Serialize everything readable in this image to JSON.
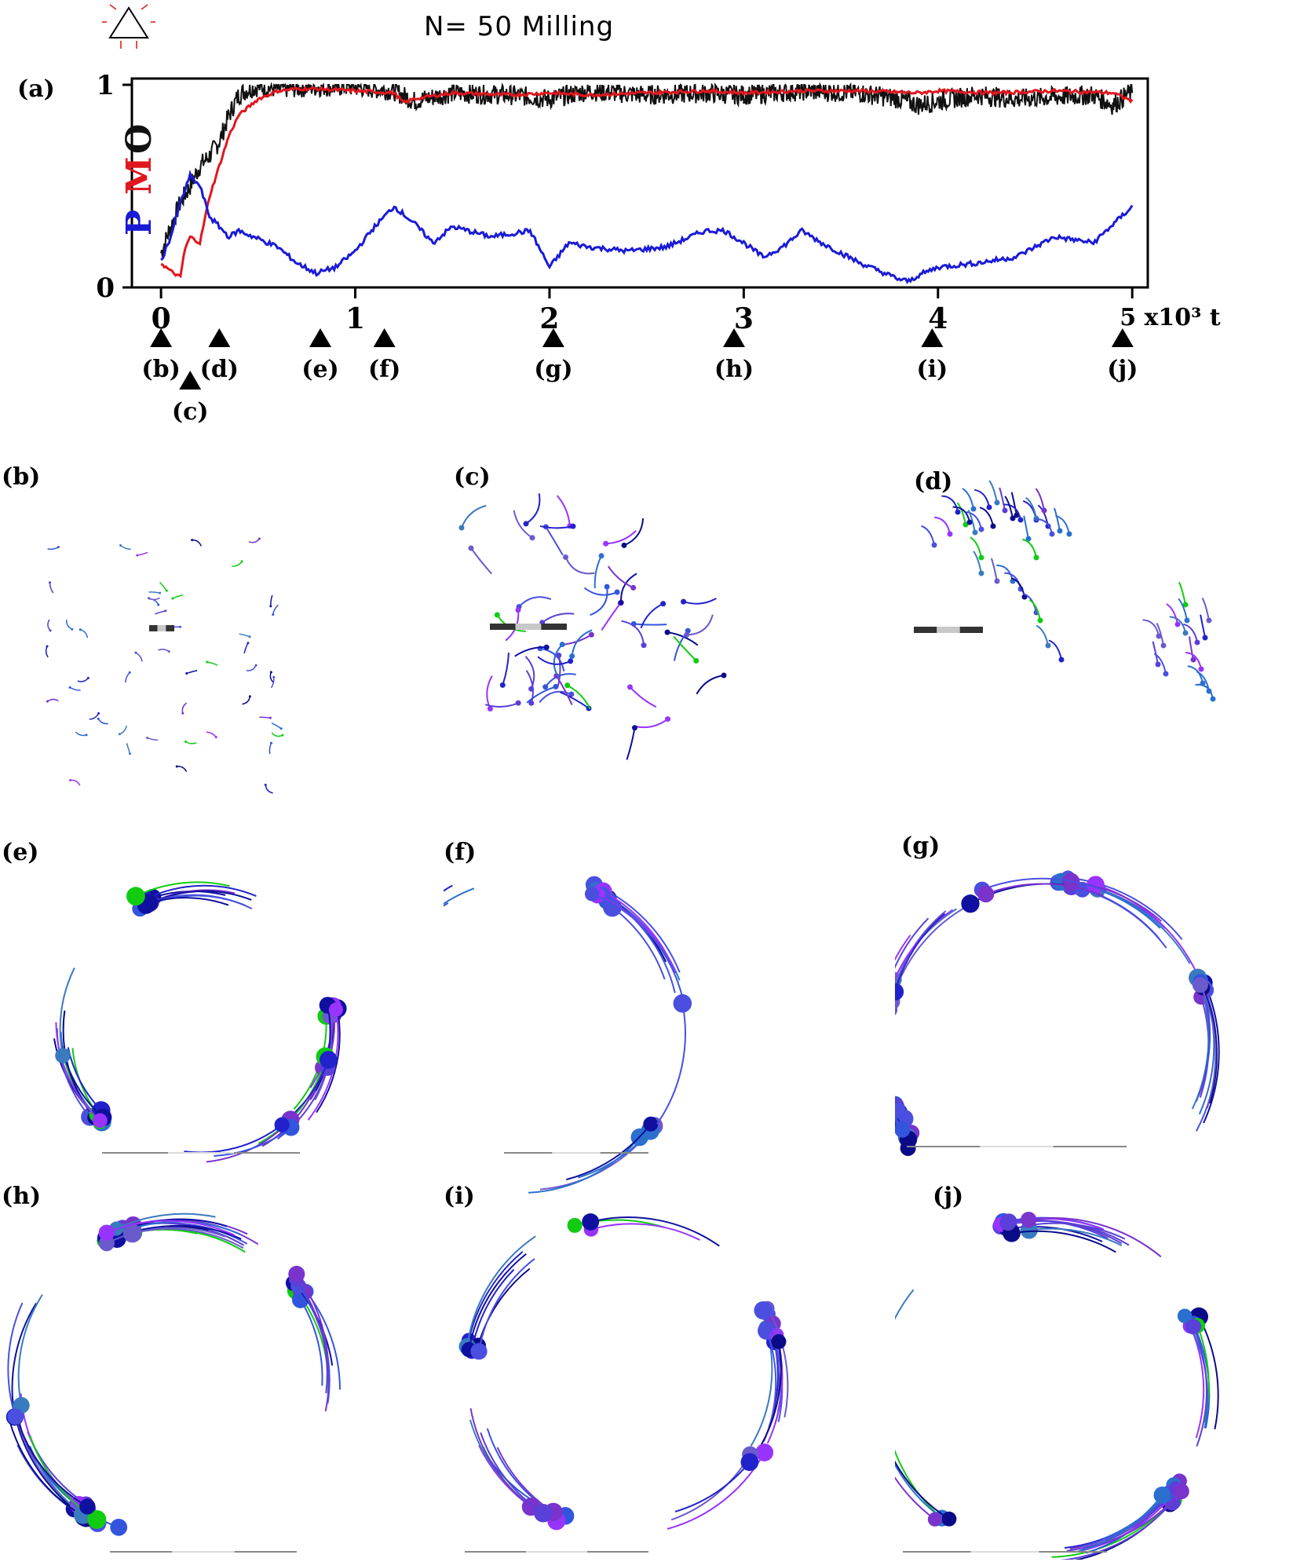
{
  "figure": {
    "title": "N= 50 Milling",
    "panel_labels": {
      "a": "(a)",
      "b": "(b)",
      "c": "(c)",
      "d": "(d)",
      "e": "(e)",
      "f": "(f)",
      "g": "(g)",
      "h": "(h)",
      "i": "(i)",
      "j": "(j)"
    },
    "ylabel_letters": [
      "P",
      "M",
      "O"
    ],
    "ylabel_colors": [
      "#1a1ad6",
      "#e0171f",
      "#111111"
    ],
    "xaxis_suffix": "5 x10³ t",
    "marker_labels": [
      "(b)",
      "(c)",
      "(d)",
      "(e)",
      "(f)",
      "(g)",
      "(h)",
      "(i)",
      "(j)"
    ]
  },
  "chart_data": {
    "type": "line",
    "title": "N= 50 Milling",
    "xlabel": "x10³ t",
    "ylabel": "P M O",
    "xlim": [
      -0.15,
      5.08
    ],
    "ylim": [
      0,
      1
    ],
    "x_ticks": [
      0,
      1,
      2,
      3,
      4,
      5
    ],
    "y_ticks": [
      0,
      1
    ],
    "markers": [
      {
        "label": "(b)",
        "t": 0.0
      },
      {
        "label": "(c)",
        "t": 0.15
      },
      {
        "label": "(d)",
        "t": 0.3
      },
      {
        "label": "(e)",
        "t": 0.82
      },
      {
        "label": "(f)",
        "t": 1.15
      },
      {
        "label": "(g)",
        "t": 2.02
      },
      {
        "label": "(h)",
        "t": 2.95
      },
      {
        "label": "(i)",
        "t": 3.97
      },
      {
        "label": "(j)",
        "t": 4.95
      }
    ],
    "series": [
      {
        "name": "O",
        "color": "#111111",
        "x": [
          0,
          0.05,
          0.1,
          0.15,
          0.2,
          0.25,
          0.3,
          0.35,
          0.4,
          0.45,
          0.5,
          0.6,
          0.8,
          1.0,
          1.2,
          1.3,
          1.5,
          1.8,
          2.0,
          2.2,
          2.5,
          2.8,
          3.0,
          3.3,
          3.6,
          3.8,
          3.9,
          4.0,
          4.2,
          4.4,
          4.6,
          4.8,
          4.9,
          5.0
        ],
        "y": [
          0.17,
          0.3,
          0.42,
          0.5,
          0.6,
          0.65,
          0.72,
          0.85,
          0.95,
          0.98,
          0.99,
          0.98,
          0.99,
          0.99,
          0.97,
          0.92,
          0.96,
          0.95,
          0.93,
          0.97,
          0.95,
          0.96,
          0.95,
          0.97,
          0.96,
          0.93,
          0.9,
          0.92,
          0.95,
          0.93,
          0.94,
          0.95,
          0.9,
          0.97
        ]
      },
      {
        "name": "M",
        "color": "#e0171f",
        "x": [
          0,
          0.05,
          0.1,
          0.12,
          0.15,
          0.2,
          0.25,
          0.3,
          0.35,
          0.4,
          0.5,
          0.6,
          0.7,
          0.8,
          1.0,
          1.2,
          1.25,
          1.3,
          1.5,
          1.8,
          2.0,
          2.2,
          2.5,
          2.8,
          3.0,
          3.3,
          3.6,
          3.9,
          4.0,
          4.3,
          4.6,
          4.9,
          5.0
        ],
        "y": [
          0.12,
          0.08,
          0.05,
          0.18,
          0.25,
          0.22,
          0.45,
          0.6,
          0.75,
          0.85,
          0.93,
          0.97,
          0.98,
          0.98,
          0.97,
          0.96,
          0.91,
          0.93,
          0.96,
          0.95,
          0.96,
          0.95,
          0.96,
          0.97,
          0.96,
          0.97,
          0.97,
          0.96,
          0.97,
          0.96,
          0.97,
          0.96,
          0.92
        ]
      },
      {
        "name": "P",
        "color": "#1a1ad6",
        "x": [
          0,
          0.05,
          0.1,
          0.15,
          0.2,
          0.25,
          0.3,
          0.35,
          0.4,
          0.5,
          0.6,
          0.7,
          0.8,
          0.9,
          1.0,
          1.1,
          1.2,
          1.3,
          1.4,
          1.5,
          1.7,
          1.9,
          2.0,
          2.1,
          2.2,
          2.4,
          2.6,
          2.8,
          2.9,
          3.0,
          3.1,
          3.2,
          3.3,
          3.4,
          3.6,
          3.8,
          3.85,
          3.9,
          4.0,
          4.2,
          4.4,
          4.5,
          4.6,
          4.8,
          5.0
        ],
        "y": [
          0.13,
          0.25,
          0.42,
          0.55,
          0.5,
          0.35,
          0.3,
          0.25,
          0.28,
          0.24,
          0.2,
          0.12,
          0.07,
          0.1,
          0.18,
          0.3,
          0.4,
          0.32,
          0.22,
          0.3,
          0.25,
          0.28,
          0.1,
          0.22,
          0.2,
          0.18,
          0.2,
          0.28,
          0.28,
          0.22,
          0.15,
          0.2,
          0.28,
          0.22,
          0.12,
          0.04,
          0.03,
          0.06,
          0.1,
          0.12,
          0.15,
          0.2,
          0.25,
          0.22,
          0.4
        ]
      }
    ]
  },
  "panels": [
    {
      "id": "b",
      "label": "(b)",
      "description_free": true
    },
    {
      "id": "c",
      "label": "(c)"
    },
    {
      "id": "d",
      "label": "(d)"
    },
    {
      "id": "e",
      "label": "(e)"
    },
    {
      "id": "f",
      "label": "(f)"
    },
    {
      "id": "g",
      "label": "(g)"
    },
    {
      "id": "h",
      "label": "(h)"
    },
    {
      "id": "i",
      "label": "(i)"
    },
    {
      "id": "j",
      "label": "(j)"
    }
  ],
  "palette": [
    "#2222cc",
    "#3355dd",
    "#5a3fd8",
    "#7a33cc",
    "#9933ff",
    "#1010a0",
    "#2b6fcf",
    "#4a4fe0",
    "#11cc11",
    "#3a7abf",
    "#6a5acd",
    "#0b0b88"
  ]
}
